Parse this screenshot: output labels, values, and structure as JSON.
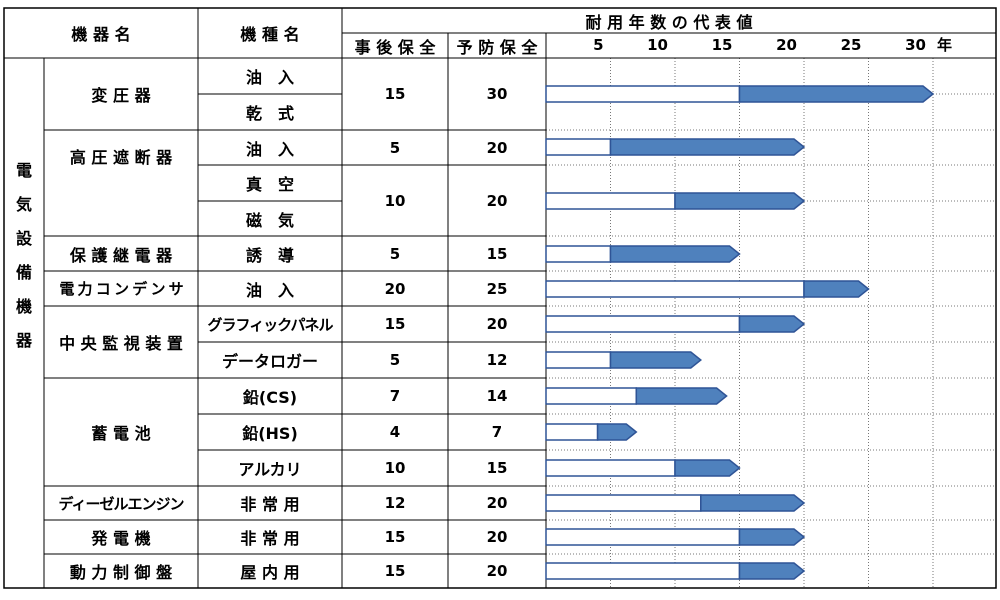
{
  "header": {
    "device_name": "機 器 名",
    "model_name": "機 種 名",
    "lifespan_title": "耐 用 年 数 の 代 表 値",
    "col_breakdown": "事 後 保 全",
    "col_preventive": "予 防 保 全",
    "year_unit": "年"
  },
  "category": [
    "電",
    "気",
    "設",
    "備",
    "機",
    "器"
  ],
  "chart_data": {
    "type": "bar",
    "title": "耐 用 年 数 の 代 表 値",
    "xlabel": "年",
    "xlim": [
      0,
      30
    ],
    "xticks": [
      5,
      10,
      15,
      20,
      25,
      30
    ],
    "grid": true,
    "colors": {
      "breakdown": "#ffffff",
      "preventive": "#4f81bd",
      "outline": "#2f5496"
    },
    "bars": [
      {
        "device_row": 0,
        "model": "油　入",
        "breakdown": 15,
        "preventive": 30
      },
      {
        "device_row": 1,
        "model": "油　入",
        "breakdown": 5,
        "preventive": 20
      },
      {
        "device_row": 2,
        "model": "真　空",
        "breakdown": 10,
        "preventive": 20
      },
      {
        "device_row": 3,
        "model": "誘　導",
        "breakdown": 5,
        "preventive": 15
      },
      {
        "device_row": 4,
        "model": "油　入",
        "breakdown": 20,
        "preventive": 25
      },
      {
        "device_row": 5,
        "model": "グラフィックパネル",
        "breakdown": 15,
        "preventive": 20
      },
      {
        "device_row": 5,
        "model": "データロガー",
        "breakdown": 5,
        "preventive": 12
      },
      {
        "device_row": 6,
        "model": "鉛(CS)",
        "breakdown": 7,
        "preventive": 14
      },
      {
        "device_row": 6,
        "model": "鉛(HS)",
        "breakdown": 4,
        "preventive": 7
      },
      {
        "device_row": 6,
        "model": "アルカリ",
        "breakdown": 10,
        "preventive": 15
      },
      {
        "device_row": 7,
        "model": "非 常 用",
        "breakdown": 12,
        "preventive": 20
      },
      {
        "device_row": 8,
        "model": "非 常 用",
        "breakdown": 15,
        "preventive": 20
      },
      {
        "device_row": 9,
        "model": "屋 内 用",
        "breakdown": 15,
        "preventive": 20
      }
    ]
  },
  "devices": [
    {
      "name": "変 圧 器"
    },
    {
      "name": "高 圧 遮 断 器"
    },
    {
      "name": "保 護 継 電 器"
    },
    {
      "name": "電 力 コ ン デ ン サ"
    },
    {
      "name": "中 央 監 視 装 置"
    },
    {
      "name": "蓄 電 池"
    },
    {
      "name": "ディーゼルエンジン"
    },
    {
      "name": "発 電 機"
    },
    {
      "name": "動 力 制 御 盤"
    }
  ],
  "rows": [
    {
      "model": "油　入",
      "breakdown": "15",
      "preventive": "30"
    },
    {
      "model": "乾　式",
      "breakdown": "",
      "preventive": ""
    },
    {
      "model": "油　入",
      "breakdown": "5",
      "preventive": "20"
    },
    {
      "model": "真　空",
      "breakdown": "10",
      "preventive": "20"
    },
    {
      "model": "磁　気",
      "breakdown": "",
      "preventive": ""
    },
    {
      "model": "誘　導",
      "breakdown": "5",
      "preventive": "15"
    },
    {
      "model": "油　入",
      "breakdown": "20",
      "preventive": "25"
    },
    {
      "model": "グラフィックパネル",
      "breakdown": "15",
      "preventive": "20"
    },
    {
      "model": "データロガー",
      "breakdown": "5",
      "preventive": "12"
    },
    {
      "model": "鉛(CS)",
      "breakdown": "7",
      "preventive": "14"
    },
    {
      "model": "鉛(HS)",
      "breakdown": "4",
      "preventive": "7"
    },
    {
      "model": "アルカリ",
      "breakdown": "10",
      "preventive": "15"
    },
    {
      "model": "非 常 用",
      "breakdown": "12",
      "preventive": "20"
    },
    {
      "model": "非 常 用",
      "breakdown": "15",
      "preventive": "20"
    },
    {
      "model": "屋 内 用",
      "breakdown": "15",
      "preventive": "20"
    }
  ]
}
